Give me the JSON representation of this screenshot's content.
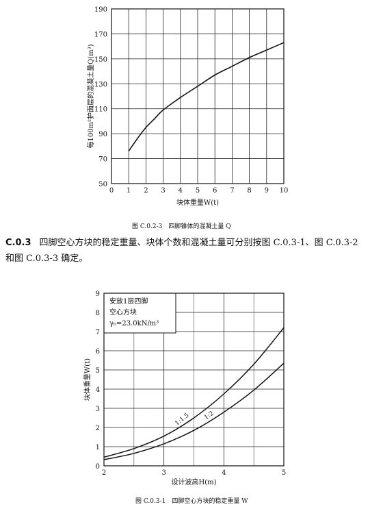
{
  "chart_data": [
    {
      "type": "line",
      "title": "",
      "xlabel": "块体重量W(t)",
      "ylabel": "每100m²护面层的混凝土量Q(m³)",
      "xlim": [
        0,
        10
      ],
      "ylim": [
        50,
        190
      ],
      "x_ticks": [
        "0",
        "1",
        "2",
        "3",
        "4",
        "5",
        "6",
        "7",
        "8",
        "9",
        "10"
      ],
      "y_ticks": [
        "50",
        "70",
        "90",
        "110",
        "130",
        "150",
        "170",
        "190"
      ],
      "grid": true,
      "series": [
        {
          "x": [
            1,
            1.5,
            2,
            2.5,
            3,
            4,
            5,
            6,
            7,
            8,
            9,
            10
          ],
          "y": [
            76,
            86,
            95,
            102,
            109,
            119,
            128,
            137,
            144,
            151,
            157,
            163
          ]
        }
      ]
    },
    {
      "type": "line",
      "title": "",
      "xlabel": "设计波高H(m)",
      "ylabel": "块体重量W(t)",
      "xlim": [
        2,
        5
      ],
      "ylim": [
        0,
        9
      ],
      "x_ticks": [
        "2",
        "3",
        "4",
        "5"
      ],
      "y_ticks": [
        "0",
        "1",
        "2",
        "3",
        "4",
        "5",
        "6",
        "7",
        "8",
        "9"
      ],
      "grid": true,
      "annotation_lines": [
        "安放1层四脚",
        "空心方块",
        "γ₀=23.0kN/m³"
      ],
      "series": [
        {
          "name": "1:1.5",
          "x": [
            2,
            2.5,
            3,
            3.5,
            4,
            4.5,
            5
          ],
          "y": [
            0.45,
            0.9,
            1.55,
            2.5,
            3.75,
            5.3,
            7.2
          ]
        },
        {
          "name": "1:2",
          "x": [
            2,
            2.5,
            3,
            3.5,
            4,
            4.5,
            5
          ],
          "y": [
            0.32,
            0.65,
            1.15,
            1.85,
            2.8,
            3.95,
            5.35
          ]
        }
      ]
    }
  ],
  "captions": {
    "fig1": "图 C.0.2-3　四脚锥体的混凝土量 Q",
    "fig2": "图 C.0.3-1　四脚空心方块的稳定重量 W"
  },
  "paragraph": {
    "number": "C.0.3",
    "text": "四脚空心方块的稳定重量、块体个数和混凝土量可分别按图 C.0.3-1、图 C.0.3-2 和图 C.0.3-3 确定。"
  }
}
